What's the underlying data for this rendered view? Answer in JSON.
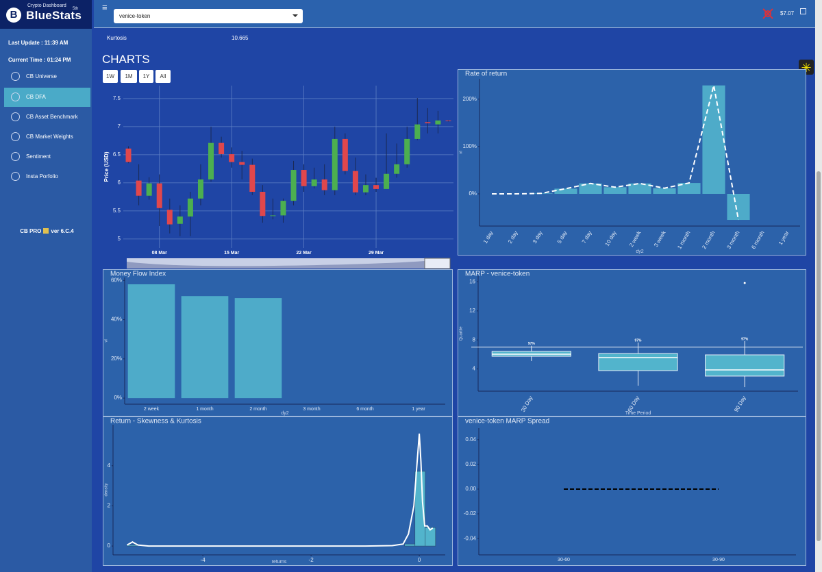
{
  "sidebar": {
    "brand_sub": "Crypto Dashboard",
    "brand": "BlueStats",
    "brand_sup": "5th",
    "last_update": "Last Update : 11:39 AM",
    "current_time": "Current Time : 01:24 PM",
    "nav": [
      "CB Universe",
      "CB DFA",
      "CB Asset Benchmark",
      "CB Market Weights",
      "Sentiment",
      "Insta Porfolio"
    ],
    "version_name": "CB PRO",
    "version": "ver 6.C.4"
  },
  "header": {
    "menu": "≡",
    "token": "venice-token",
    "price": "$7.07"
  },
  "stats": {
    "label": "Kurtosis",
    "value": 10.665
  },
  "section_title": "CHARTS",
  "range_buttons": [
    "1W",
    "1M",
    "1Y",
    "All"
  ],
  "chart_data": [
    {
      "type": "candlestick",
      "ylabel": "Price (USD)",
      "categories": [
        null,
        null,
        null,
        "08 Mar",
        null,
        null,
        null,
        null,
        null,
        null,
        "15 Mar",
        null,
        null,
        null,
        null,
        null,
        null,
        "22 Mar",
        null,
        null,
        null,
        null,
        null,
        null,
        "29 Mar",
        null,
        null,
        null,
        null,
        null,
        null,
        null
      ],
      "open": [
        6.61,
        6.04,
        5.77,
        5.99,
        5.52,
        5.27,
        5.4,
        5.72,
        6.06,
        6.71,
        6.51,
        6.37,
        6.32,
        5.84,
        5.41,
        5.42,
        5.68,
        6.23,
        5.94,
        6.06,
        5.87,
        6.78,
        6.21,
        5.83,
        5.96,
        5.89,
        6.16,
        6.33,
        6.78,
        7.08,
        7.04,
        7.11
      ],
      "high": [
        6.65,
        6.33,
        6.1,
        6.15,
        5.72,
        5.6,
        5.84,
        6.33,
        7.0,
        6.82,
        6.63,
        6.57,
        6.43,
        5.96,
        5.72,
        5.72,
        6.39,
        6.33,
        6.27,
        6.33,
        7.0,
        6.88,
        6.45,
        6.15,
        6.09,
        6.88,
        6.7,
        7.0,
        7.51,
        7.33,
        7.28,
        7.12
      ],
      "low": [
        6.35,
        5.6,
        5.7,
        5.23,
        5.1,
        5.05,
        5.05,
        5.6,
        6.02,
        6.45,
        6.27,
        6.06,
        5.78,
        5.29,
        5.35,
        5.29,
        5.6,
        5.84,
        5.9,
        5.78,
        5.78,
        6.15,
        5.78,
        5.78,
        5.84,
        5.89,
        6.09,
        6.27,
        6.76,
        6.88,
        6.88,
        7.09
      ],
      "close": [
        6.37,
        5.77,
        5.99,
        5.55,
        5.26,
        5.4,
        5.72,
        6.06,
        6.71,
        6.51,
        6.37,
        6.32,
        5.84,
        5.41,
        5.42,
        5.68,
        6.23,
        5.94,
        6.06,
        5.87,
        6.78,
        6.21,
        5.83,
        5.96,
        5.89,
        6.16,
        6.33,
        6.78,
        7.04,
        7.06,
        7.11,
        7.1
      ],
      "increasing_color": "#4caf50",
      "decreasing_color": "#e0474c",
      "ylim": [
        4.84,
        7.73
      ],
      "yticks": [
        5,
        5.5,
        6,
        6.5,
        7,
        7.5
      ],
      "grid": true
    },
    {
      "type": "bar_line",
      "title": "Rate of return",
      "xlabel": "dy2",
      "ylabel": "vl",
      "categories": [
        "1 day",
        "2 day",
        "3 day",
        "5 day",
        "7 day",
        "10 day",
        "2 week",
        "3 week",
        "1 month",
        "2 month",
        "3 month",
        "6 month",
        "1 year"
      ],
      "values": [
        0,
        0,
        1,
        11,
        22,
        14,
        22,
        12,
        23,
        229,
        -55,
        null,
        null
      ],
      "color": "#52b4cc",
      "line_color": "#ffffff",
      "ylim": [
        -68,
        243
      ],
      "yticks": [
        {
          "value": 0,
          "label": "0%"
        },
        {
          "value": 100,
          "label": "100%"
        },
        {
          "value": 200,
          "label": "200%"
        }
      ]
    },
    {
      "type": "bar",
      "title": "Money Flow Index",
      "xlabel": "dy2",
      "ylabel": "vl",
      "categories": [
        "2 week",
        "1 month",
        "2 month",
        "3 month",
        "6 month",
        "1 year"
      ],
      "values": [
        58,
        52,
        51,
        null,
        null,
        null
      ],
      "color": "#52b4cc",
      "ylim": [
        -3.1,
        61.5
      ],
      "yticks": [
        {
          "value": 0,
          "label": "0%"
        },
        {
          "value": 20,
          "label": "20%"
        },
        {
          "value": 40,
          "label": "40%"
        },
        {
          "value": 60,
          "label": "60%"
        }
      ]
    },
    {
      "type": "box",
      "title": "MARP - venice-token",
      "xlabel": "Time Period",
      "ylabel": "Quartile",
      "categories": [
        "30 Day",
        "60 Day",
        "90 Day"
      ],
      "min": [
        5.1,
        1.7,
        1.5
      ],
      "q1": [
        5.75,
        3.77,
        3.02
      ],
      "median": [
        6.04,
        5.57,
        3.87
      ],
      "q3": [
        6.42,
        6.13,
        5.94
      ],
      "max": [
        7.2,
        7.64,
        7.83
      ],
      "outliers": [
        null,
        null,
        15.85
      ],
      "reference_line": 7.0,
      "annotations": [
        "97%",
        "97%",
        "97%"
      ],
      "color": "#52b4cc",
      "ylim": [
        0.94,
        16.8
      ],
      "yticks": [
        4,
        8,
        12,
        16
      ]
    },
    {
      "type": "histogram",
      "title": "Return - Skewness & Kurtosis",
      "xlabel": "returns",
      "ylabel": "density",
      "bins": [
        -5.4,
        -5.21,
        -5.02,
        -4.83,
        -4.64,
        -4.45,
        -4.26,
        -4.07,
        -3.88,
        -3.69,
        -3.5,
        -3.31,
        -3.12,
        -2.93,
        -2.74,
        -2.55,
        -2.36,
        -2.17,
        -1.98,
        -1.79,
        -1.6,
        -1.41,
        -1.22,
        -1.03,
        -0.84,
        -0.65,
        -0.46,
        -0.27,
        -0.08,
        0.11,
        0.3
      ],
      "counts": [
        0.05,
        0,
        0,
        0,
        0,
        0,
        0,
        0,
        0,
        0,
        0,
        0,
        0,
        0,
        0,
        0,
        0,
        0,
        0,
        0,
        0,
        0,
        0,
        0,
        0,
        0,
        0,
        0.1,
        3.72,
        0.92
      ],
      "density": {
        "x": [
          -5.4,
          -5.3,
          -5.2,
          -5,
          -4,
          -3,
          -2,
          -1,
          -0.5,
          -0.3,
          -0.2,
          -0.1,
          -0.05,
          0,
          0.03,
          0.06,
          0.1,
          0.15,
          0.2,
          0.25
        ],
        "y": [
          0.05,
          0.2,
          0.05,
          0,
          0,
          0,
          0,
          0,
          0.02,
          0.1,
          0.6,
          2.0,
          3.8,
          5.6,
          4.2,
          2.2,
          1.0,
          1.0,
          0.8,
          0.9
        ]
      },
      "color": "#52b4cc",
      "line_color": "#ffffff",
      "xlim": [
        -5.66,
        0.48
      ],
      "xticks": [
        -4,
        -2,
        0
      ],
      "ylim": [
        -0.44,
        6.04
      ],
      "yticks": [
        0,
        2,
        4
      ]
    },
    {
      "type": "line",
      "title": "venice-token MARP Spread",
      "categories": [
        "30-60",
        "30-90"
      ],
      "values": [
        0,
        0
      ],
      "color": "#000000",
      "dashed": true,
      "ylim": [
        -0.0532,
        0.0493
      ],
      "yticks": [
        0.04,
        0.02,
        {
          "value": 0,
          "label": "0.00"
        },
        -0.02,
        -0.04
      ]
    }
  ]
}
